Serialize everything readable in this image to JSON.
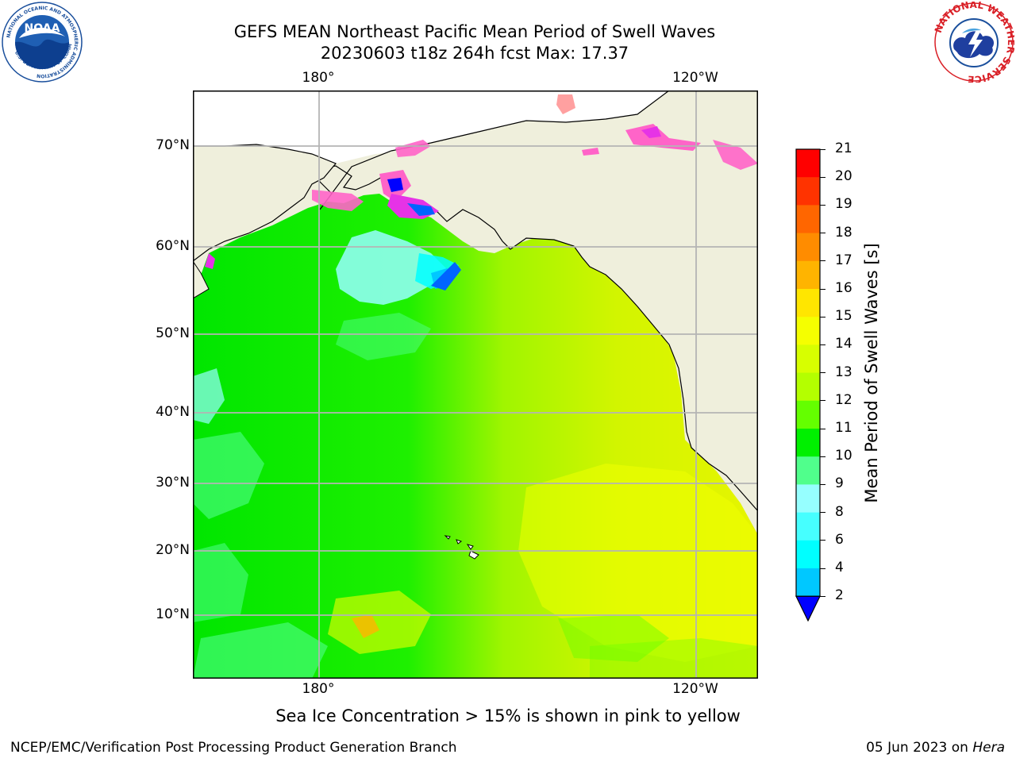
{
  "title": {
    "line1": "GEFS MEAN Northeast Pacific Mean Period of Swell Waves",
    "line2": "20230603 t18z 264h fcst   Max: 17.37"
  },
  "map": {
    "lon_labels_top": [
      "180°",
      "120°W"
    ],
    "lon_labels_bottom": [
      "180°",
      "120°W"
    ],
    "lat_labels": [
      "70°N",
      "60°N",
      "50°N",
      "40°N",
      "30°N",
      "20°N",
      "10°N"
    ]
  },
  "colorbar": {
    "title": "Mean Period of Swell Waves [s]",
    "ticks": [
      "21",
      "20",
      "19",
      "18",
      "17",
      "16",
      "15",
      "14",
      "13",
      "12",
      "11",
      "10",
      "9",
      "8",
      "6",
      "4",
      "2"
    ],
    "colors": [
      "#ff0000",
      "#ff3300",
      "#ff6600",
      "#ff8c00",
      "#ffb400",
      "#ffe600",
      "#f5ff00",
      "#d7ff00",
      "#b4ff00",
      "#64ff00",
      "#00f000",
      "#50ff8c",
      "#96ffff",
      "#46ffff",
      "#00ffff",
      "#00c8ff",
      "#0064ff"
    ],
    "under_color": "#0000ff"
  },
  "colors": {
    "land": "#efefdc",
    "grid": "#b4b4b4",
    "ice_pink": "#ff64c8",
    "ice_magenta": "#e633e6"
  },
  "logos": {
    "noaa_text": "NOAA",
    "noaa_ring": "NATIONAL OCEANIC AND ATMOSPHERIC ADMINISTRATION",
    "noaa_ring_bottom": "U.S. DEPARTMENT OF COMMERCE",
    "nws_ring": "NATIONAL WEATHER SERVICE"
  },
  "footer": {
    "note": "Sea Ice Concentration > 15% is shown in pink to yellow",
    "credit_left": "NCEP/EMC/Verification Post Processing Product Generation Branch",
    "credit_right_date": "05 Jun 2023 on ",
    "credit_right_host": "Hera"
  }
}
